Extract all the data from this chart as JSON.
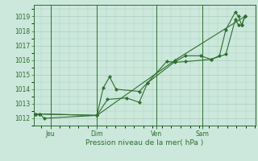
{
  "background_color": "#cce8dc",
  "grid_color": "#aaccbb",
  "line_color": "#2d6e2d",
  "marker_color": "#2d6e2d",
  "xlabel": "Pression niveau de la mer( hPa )",
  "ylim": [
    1011.5,
    1019.8
  ],
  "yticks": [
    1012,
    1013,
    1014,
    1015,
    1016,
    1017,
    1018,
    1019
  ],
  "day_labels": [
    "Jeu",
    "Dim",
    "Ven",
    "Sam"
  ],
  "day_positions": [
    0.08,
    0.3,
    0.58,
    0.8
  ],
  "vline_positions": [
    0.08,
    0.3,
    0.58,
    0.8
  ],
  "series1_x": [
    0.01,
    0.03,
    0.05,
    0.3,
    0.33,
    0.36,
    0.39,
    0.5,
    0.54,
    0.63,
    0.67,
    0.72,
    0.84,
    0.88,
    0.91,
    0.955,
    0.97,
    0.985,
    1.0
  ],
  "series1_y": [
    1012.3,
    1012.3,
    1012.0,
    1012.2,
    1014.1,
    1014.85,
    1014.0,
    1013.85,
    1014.45,
    1015.9,
    1015.85,
    1015.9,
    1016.05,
    1016.3,
    1018.1,
    1019.3,
    1019.0,
    1018.4,
    1019.0
  ],
  "series2_x": [
    0.01,
    0.03,
    0.3,
    0.35,
    0.44,
    0.5,
    0.54,
    0.67,
    0.72,
    0.79,
    0.84,
    0.91,
    0.955,
    0.97,
    0.985,
    1.0
  ],
  "series2_y": [
    1012.3,
    1012.3,
    1012.2,
    1013.3,
    1013.4,
    1013.1,
    1014.45,
    1015.9,
    1016.3,
    1016.3,
    1016.05,
    1016.4,
    1018.8,
    1018.4,
    1018.4,
    1019.0
  ],
  "series3_x": [
    0.01,
    0.3,
    0.67,
    1.0
  ],
  "series3_y": [
    1012.3,
    1012.2,
    1016.0,
    1019.0
  ],
  "xlim": [
    0.0,
    1.05
  ]
}
